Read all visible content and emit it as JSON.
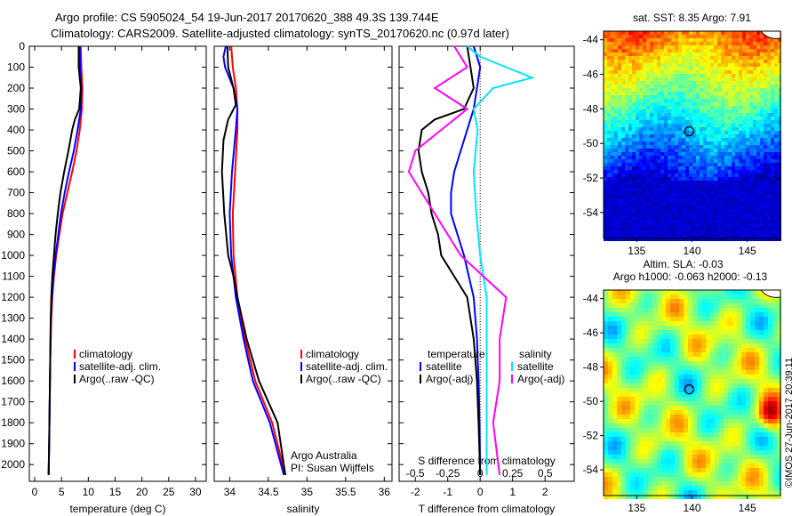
{
  "title": {
    "line1": "Argo profile: CS 5905024_54 19-Jun-2017 20170620_388 49.3S 139.744E",
    "line2": "Climatology: CARS2009. Satellite-adjusted climatology: synTS_20170620.nc (0.97d later)"
  },
  "watermark": "©IMOS 27-Jun-2017 20:39:11",
  "colors": {
    "climatology": "#ff0000",
    "satellite": "#0000ff",
    "argo": "#000000",
    "sat_salinity": "#00e5ff",
    "argo_salinity_adj": "#ff00ff"
  },
  "chart_data": [
    {
      "id": "temperature",
      "type": "line",
      "xlabel": "temperature (deg C)",
      "ylabel": "",
      "xlim": [
        -1,
        32
      ],
      "ylim": [
        2080,
        0
      ],
      "xticks": [
        "0",
        "5",
        "10",
        "15",
        "20",
        "25",
        "30"
      ],
      "xtick_values": [
        0,
        5,
        10,
        15,
        20,
        25,
        30
      ],
      "yticks": [
        "0",
        "100",
        "200",
        "300",
        "400",
        "500",
        "600",
        "700",
        "800",
        "900",
        "1000",
        "1100",
        "1200",
        "1300",
        "1400",
        "1500",
        "1600",
        "1700",
        "1800",
        "1900",
        "2000"
      ],
      "ytick_values": [
        0,
        100,
        200,
        300,
        400,
        500,
        600,
        700,
        800,
        900,
        1000,
        1100,
        1200,
        1300,
        1400,
        1500,
        1600,
        1700,
        1800,
        1900,
        2000
      ],
      "legend": [
        "climatology",
        "satellite-adj. clim.",
        "Argo(..raw -QC)"
      ],
      "series": [
        {
          "name": "climatology",
          "color": "#ff0000",
          "depth": [
            0,
            100,
            200,
            300,
            400,
            500,
            600,
            700,
            800,
            900,
            1000,
            1100,
            1200,
            1300,
            1500,
            1700,
            1900,
            2050
          ],
          "values": [
            8.6,
            8.7,
            8.9,
            8.8,
            8.4,
            7.8,
            7.0,
            6.1,
            5.2,
            4.6,
            4.0,
            3.6,
            3.3,
            3.1,
            2.9,
            2.8,
            2.7,
            2.6
          ]
        },
        {
          "name": "satellite-adj. clim.",
          "color": "#0000ff",
          "depth": [
            0,
            100,
            200,
            300,
            400,
            500,
            600,
            700,
            800,
            900,
            1000,
            1100,
            1200,
            1300,
            1500,
            1700,
            1900,
            2050
          ],
          "values": [
            8.4,
            8.5,
            8.7,
            8.6,
            8.0,
            7.3,
            6.4,
            5.6,
            4.9,
            4.4,
            3.9,
            3.5,
            3.2,
            3.0,
            2.9,
            2.8,
            2.7,
            2.6
          ]
        },
        {
          "name": "Argo(..raw -QC)",
          "color": "#000000",
          "depth": [
            0,
            100,
            200,
            300,
            350,
            400,
            500,
            600,
            700,
            800,
            900,
            1000,
            1100,
            1200,
            1300,
            1500,
            1700,
            1900,
            2050
          ],
          "values": [
            8.2,
            8.2,
            8.6,
            8.3,
            7.5,
            7.0,
            6.3,
            5.5,
            4.8,
            4.3,
            3.9,
            3.6,
            3.3,
            3.1,
            3.0,
            2.9,
            2.8,
            2.7,
            2.6
          ]
        }
      ]
    },
    {
      "id": "salinity",
      "type": "line",
      "xlabel": "salinity",
      "xlim": [
        33.8,
        36.1
      ],
      "ylim": [
        2080,
        0
      ],
      "xticks": [
        "34",
        "34.5",
        "35",
        "35.5",
        "36"
      ],
      "xtick_values": [
        34,
        34.5,
        35,
        35.5,
        36
      ],
      "legend": [
        "climatology",
        "satellite-adj. clim.",
        "Argo(..raw -QC)"
      ],
      "annotation": [
        "Argo Australia",
        "PI: Susan Wijffels"
      ],
      "series": [
        {
          "name": "climatology",
          "color": "#ff0000",
          "depth": [
            0,
            100,
            200,
            300,
            400,
            600,
            800,
            1000,
            1200,
            1400,
            1600,
            1800,
            2050
          ],
          "values": [
            34.02,
            34.04,
            34.08,
            34.1,
            34.1,
            34.07,
            34.04,
            34.05,
            34.1,
            34.2,
            34.33,
            34.55,
            34.72
          ]
        },
        {
          "name": "satellite-adj. clim.",
          "color": "#0000ff",
          "depth": [
            0,
            50,
            100,
            200,
            300,
            400,
            600,
            800,
            1000,
            1200,
            1400,
            1600,
            1800,
            2050
          ],
          "values": [
            33.95,
            33.92,
            33.94,
            34.05,
            34.1,
            34.08,
            34.03,
            34.0,
            34.02,
            34.08,
            34.18,
            34.3,
            34.52,
            34.7
          ]
        },
        {
          "name": "Argo(..raw -QC)",
          "color": "#000000",
          "depth": [
            0,
            100,
            200,
            280,
            350,
            450,
            600,
            800,
            1000,
            1100,
            1200,
            1400,
            1600,
            1800,
            2050
          ],
          "values": [
            33.97,
            33.98,
            34.05,
            34.08,
            33.98,
            33.92,
            33.9,
            33.93,
            33.98,
            34.05,
            34.1,
            34.22,
            34.38,
            34.62,
            34.72
          ]
        }
      ]
    },
    {
      "id": "difference",
      "type": "line",
      "xlabel": "T difference from climatology",
      "xlabel_top": "S difference from climatology",
      "xlim": [
        -2.5,
        2.9
      ],
      "ylim": [
        2080,
        0
      ],
      "xticks": [
        "-2",
        "-1",
        "0",
        "1",
        "2"
      ],
      "xtick_values": [
        -2,
        -1,
        0,
        1,
        2
      ],
      "sticks": [
        "-0.5",
        "-0.25",
        "0",
        "0.25",
        "0.5"
      ],
      "stick_values": [
        -0.5,
        -0.25,
        0,
        0.25,
        0.5
      ],
      "legend_left": [
        "temperature",
        "satellite",
        "Argo(-adj)"
      ],
      "legend_right": [
        "salinity",
        "satellite",
        "Argo(-adj)"
      ],
      "series": [
        {
          "name": "temperature satellite",
          "color": "#0000ff",
          "depth": [
            0,
            50,
            100,
            200,
            300,
            400,
            500,
            600,
            700,
            800,
            900,
            1000,
            1200,
            1400,
            1600,
            1800,
            2050
          ],
          "values": [
            -0.2,
            -0.1,
            0.0,
            -0.1,
            -0.2,
            -0.4,
            -0.6,
            -0.8,
            -0.9,
            -0.9,
            -0.7,
            -0.5,
            -0.2,
            -0.1,
            -0.05,
            -0.02,
            0.0
          ]
        },
        {
          "name": "temperature Argo(-adj)",
          "color": "#000000",
          "depth": [
            0,
            100,
            200,
            300,
            350,
            400,
            500,
            600,
            700,
            800,
            900,
            1000,
            1100,
            1200,
            1400,
            1600,
            1800,
            2050
          ],
          "values": [
            -0.4,
            -0.3,
            -0.2,
            -0.5,
            -1.4,
            -1.8,
            -1.9,
            -1.8,
            -1.6,
            -1.5,
            -1.3,
            -1.2,
            -0.8,
            -0.4,
            -0.2,
            -0.1,
            -0.05,
            0.0
          ]
        },
        {
          "name": "salinity satellite",
          "color": "#00e5ff",
          "depth": [
            0,
            50,
            100,
            150,
            200,
            300,
            400,
            600,
            800,
            1000,
            1200,
            1400,
            1600,
            1800,
            2050
          ],
          "values": [
            -0.1,
            0.0,
            0.2,
            0.4,
            0.1,
            -0.05,
            -0.02,
            -0.05,
            -0.03,
            0.0,
            0.05,
            0.05,
            0.05,
            0.05,
            0.05
          ]
        },
        {
          "name": "salinity Argo(-adj)",
          "color": "#ff00ff",
          "depth": [
            0,
            100,
            200,
            300,
            400,
            500,
            600,
            700,
            800,
            1000,
            1200,
            1400,
            1600,
            1800,
            2050
          ],
          "values": [
            -0.2,
            -0.1,
            -0.35,
            -0.1,
            -0.3,
            -0.5,
            -0.55,
            -0.45,
            -0.35,
            -0.15,
            0.2,
            0.15,
            0.15,
            0.1,
            0.15
          ]
        }
      ]
    },
    {
      "id": "sst_map",
      "type": "heatmap",
      "title": "sat. SST: 8.35 Argo: 7.91",
      "xlim": [
        132,
        148
      ],
      "ylim": [
        -55.5,
        -43.5
      ],
      "xticks": [
        "135",
        "140",
        "145"
      ],
      "xtick_values": [
        135,
        140,
        145
      ],
      "yticks": [
        "-44",
        "-46",
        "-48",
        "-50",
        "-52",
        "-54"
      ],
      "ytick_values": [
        -44,
        -46,
        -48,
        -50,
        -52,
        -54
      ],
      "marker": {
        "lon": 139.744,
        "lat": -49.3
      }
    },
    {
      "id": "sla_map",
      "type": "heatmap",
      "title_line1": "Altim. SLA: -0.03",
      "title_line2": "Argo h1000: -0.063 h2000: -0.13",
      "xlim": [
        132,
        148
      ],
      "ylim": [
        -55.5,
        -43.5
      ],
      "xticks": [
        "135",
        "140",
        "145"
      ],
      "xtick_values": [
        135,
        140,
        145
      ],
      "yticks": [
        "-44",
        "-46",
        "-48",
        "-50",
        "-52",
        "-54"
      ],
      "ytick_values": [
        -44,
        -46,
        -48,
        -50,
        -52,
        -54
      ],
      "marker": {
        "lon": 139.744,
        "lat": -49.3
      }
    }
  ]
}
